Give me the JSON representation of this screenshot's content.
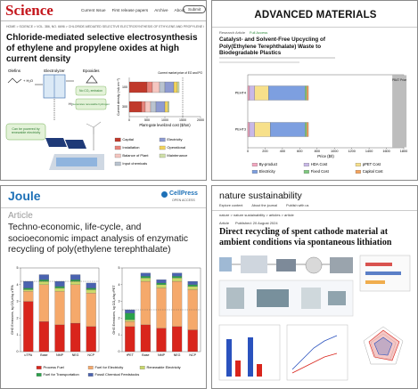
{
  "science": {
    "logo": "Science",
    "nav": [
      "Current Issue",
      "First release papers",
      "Archive",
      "About"
    ],
    "submit": "Submit",
    "breadcrumb": "HOME > SCIENCE > VOL. 386, NO. 6696 > CHLORIDE-MEDIATED SELECTIVE ELECTROSYNTHESIS OF ETHYLENE AND PROPYLENE OXIDES AT HIGH CURRENT DENSITY",
    "title": "Chloride-mediated selective electrosynthesis of ethylene and propylene oxides at high current density",
    "scheme": {
      "olefins": "Olefins",
      "reaction": "+ H₂O",
      "electrolyzer": "Electrolyzer",
      "epoxides": "Epoxides",
      "no_co2": "No CO₂ emission",
      "hydrogen": "Generates renewable hydrogen",
      "h2": "H₂",
      "renewable": "Can be powered by renewable electricity"
    },
    "chart_data": {
      "type": "bar",
      "orientation": "horizontal",
      "categories": [
        "100",
        "300"
      ],
      "ylabel": "Current density (mA cm⁻²)",
      "xlabel": "Plant-gate levelized cost ($/ton)",
      "xlim": [
        0,
        2000
      ],
      "xticks": [
        0,
        500,
        1000,
        1500,
        2000
      ],
      "reference": {
        "label": "Current market price of EO and PO",
        "value": 1500
      },
      "series": [
        {
          "name": "Capital",
          "color": "#c0392b",
          "values": [
            500,
            350
          ]
        },
        {
          "name": "Installation",
          "color": "#e8837a",
          "values": [
            150,
            100
          ]
        },
        {
          "name": "Balance of Plant",
          "color": "#f5c6c0",
          "values": [
            200,
            150
          ]
        },
        {
          "name": "Input chemicals",
          "color": "#b9c3cf",
          "values": [
            150,
            150
          ]
        },
        {
          "name": "Electricity",
          "color": "#8e9bd1",
          "values": [
            250,
            250
          ]
        },
        {
          "name": "Operational",
          "color": "#f2d35b",
          "values": [
            100,
            80
          ]
        },
        {
          "name": "Maintenance",
          "color": "#cfe0a8",
          "values": [
            50,
            40
          ]
        }
      ]
    }
  },
  "advanced_materials": {
    "logo": "ADVANCED MATERIALS",
    "article_type": "Research Article",
    "access": "Full Access",
    "title": "Catalyst- and Solvent-Free Upcycling of Poly(Ethylene Terephthalate) Waste to Biodegradable Plastics",
    "chart_data": {
      "type": "bar",
      "orientation": "horizontal",
      "categories": [
        "PEHT4",
        "PEHT3"
      ],
      "xlabel": "Price ($/t)",
      "xlim": [
        0,
        1800
      ],
      "xticks": [
        0,
        200,
        400,
        600,
        800,
        1000,
        1200,
        1400,
        1600,
        1800
      ],
      "reference": {
        "label": "PBAT Price",
        "value": 1750
      },
      "series": [
        {
          "name": "By-product",
          "color": "#f4a6c0",
          "values": [
            20,
            20
          ]
        },
        {
          "name": "HDA Cost",
          "color": "#c9b8e8",
          "values": [
            60,
            60
          ]
        },
        {
          "name": "pPET Cost",
          "color": "#f7e08a",
          "values": [
            160,
            180
          ]
        },
        {
          "name": "Electricity",
          "color": "#7d9fe0",
          "values": [
            420,
            400
          ]
        },
        {
          "name": "Fixed Cost",
          "color": "#7fc97f",
          "values": [
            20,
            20
          ]
        },
        {
          "name": "Capital Cost",
          "color": "#f5a35c",
          "values": [
            20,
            20
          ]
        }
      ]
    }
  },
  "joule": {
    "logo": "Joule",
    "cellpress": "CellPress",
    "open_access": "OPEN ACCESS",
    "article_type": "Article",
    "title": "Techno-economic, life-cycle, and socioeconomic impact analysis of enzymatic recycling of poly(ethylene terephthalate)",
    "charts": [
      {
        "type": "bar",
        "ylabel": "GHG Emissions, kg CO₂e/kg uTPA",
        "categories": [
          "uTPA",
          "Base",
          "NMP",
          "NEG",
          "NCP"
        ],
        "ylim": [
          0,
          5
        ],
        "yticks": [
          0,
          1,
          2,
          3,
          4,
          5
        ],
        "series": [
          {
            "name": "Process Fuel",
            "color": "#d9251c",
            "values": [
              3.0,
              1.8,
              1.6,
              1.7,
              1.5
            ]
          },
          {
            "name": "Fuel for Electricity",
            "color": "#f5a96b",
            "values": [
              0.6,
              2.2,
              2.0,
              2.3,
              2.0
            ]
          },
          {
            "name": "Renewable Electricity",
            "color": "#c9d86a",
            "values": [
              0.1,
              0.2,
              0.2,
              0.2,
              0.2
            ]
          },
          {
            "name": "Fuel for Transportation",
            "color": "#2aa14a",
            "values": [
              0.1,
              0.1,
              0.1,
              0.1,
              0.1
            ]
          },
          {
            "name": "Fossil Chemical Feedstocks",
            "color": "#4a63b0",
            "values": [
              0.4,
              0.3,
              0.3,
              0.3,
              0.3
            ]
          }
        ]
      },
      {
        "type": "bar",
        "ylabel": "GHG Emissions, kg CO₂e/kg rPET",
        "categories": [
          "rPET",
          "Base",
          "NMP",
          "NEG",
          "NCP"
        ],
        "ylim": [
          0,
          5
        ],
        "yticks": [
          0,
          1,
          2,
          3,
          4,
          5
        ],
        "series": [
          {
            "name": "Process Fuel",
            "color": "#d9251c",
            "values": [
              1.5,
              1.6,
              1.4,
              1.5,
              1.3
            ]
          },
          {
            "name": "Fuel for Electricity",
            "color": "#f5a96b",
            "values": [
              0.3,
              2.6,
              2.4,
              2.7,
              2.4
            ]
          },
          {
            "name": "Renewable Electricity",
            "color": "#c9d86a",
            "values": [
              0.1,
              0.2,
              0.2,
              0.2,
              0.2
            ]
          },
          {
            "name": "Fuel for Transportation",
            "color": "#2aa14a",
            "values": [
              0.4,
              0.1,
              0.1,
              0.1,
              0.1
            ]
          },
          {
            "name": "Fossil Chemical Feedstocks",
            "color": "#4a63b0",
            "values": [
              0.2,
              0.2,
              0.2,
              0.2,
              0.2
            ]
          }
        ]
      }
    ]
  },
  "nature_sustainability": {
    "logo": "nature sustainability",
    "nav": [
      "Explore content",
      "About the journal",
      "Publish with us"
    ],
    "breadcrumb": "nature > nature sustainability > articles > article",
    "article_type": "Article",
    "published": "Published: 20 August 2024",
    "title": "Direct recycling of spent cathode material at ambient conditions via spontaneous lithiation"
  }
}
